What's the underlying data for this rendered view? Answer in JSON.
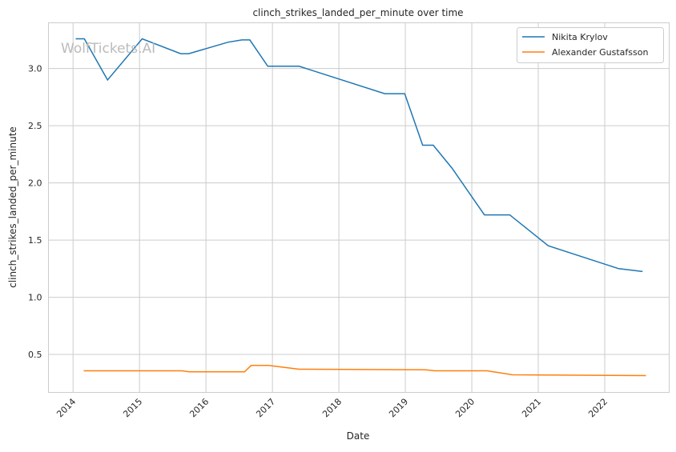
{
  "chart_data": {
    "type": "line",
    "title": "clinch_strikes_landed_per_minute over time",
    "xlabel": "Date",
    "ylabel": "clinch_strikes_landed_per_minute",
    "xlim": [
      2013.63,
      2022.97
    ],
    "ylim": [
      0.168,
      3.4
    ],
    "x_ticks": [
      2014,
      2015,
      2016,
      2017,
      2018,
      2019,
      2020,
      2021,
      2022
    ],
    "x_tick_labels": [
      "2014",
      "2015",
      "2016",
      "2017",
      "2018",
      "2019",
      "2020",
      "2021",
      "2022"
    ],
    "y_ticks": [
      0.5,
      1.0,
      1.5,
      2.0,
      2.5,
      3.0
    ],
    "y_tick_labels": [
      "0.5",
      "1.0",
      "1.5",
      "2.0",
      "2.5",
      "3.0"
    ],
    "grid": true,
    "legend_position": "top-right",
    "watermark": "WolfTickets.AI",
    "series": [
      {
        "name": "Nikita Krylov",
        "color": "#1f77b4",
        "x": [
          2014.04,
          2014.17,
          2014.52,
          2015.04,
          2015.62,
          2015.74,
          2016.33,
          2016.54,
          2016.66,
          2016.93,
          2017.4,
          2018.69,
          2018.99,
          2019.26,
          2019.42,
          2019.7,
          2020.19,
          2020.57,
          2021.15,
          2022.21,
          2022.57
        ],
        "y": [
          3.26,
          3.26,
          2.9,
          3.26,
          3.13,
          3.13,
          3.23,
          3.25,
          3.25,
          3.02,
          3.02,
          2.78,
          2.78,
          2.33,
          2.33,
          2.13,
          1.72,
          1.72,
          1.45,
          1.25,
          1.225
        ]
      },
      {
        "name": "Alexander Gustafsson",
        "color": "#ff7f0e",
        "x": [
          2014.16,
          2015.64,
          2015.75,
          2016.58,
          2016.68,
          2016.94,
          2017.4,
          2019.31,
          2019.44,
          2020.23,
          2020.61,
          2022.62
        ],
        "y": [
          0.357,
          0.357,
          0.348,
          0.348,
          0.404,
          0.404,
          0.371,
          0.366,
          0.357,
          0.357,
          0.322,
          0.315
        ]
      }
    ]
  }
}
